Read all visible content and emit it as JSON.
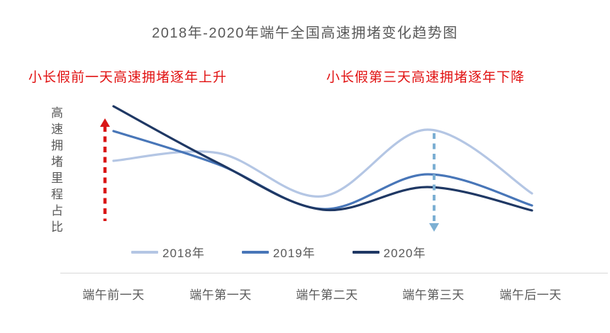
{
  "title": "2018年-2020年端午全国高速拥堵变化趋势图",
  "annotations": {
    "left": {
      "text": "小长假前一天高速拥堵逐年上升",
      "arrow": "up"
    },
    "right": {
      "text": "小长假第三天高速拥堵逐年下降",
      "arrow": "down"
    },
    "text_color": "#e11212",
    "up_arrow_color": "#d91616",
    "down_arrow_color": "#7cafd3"
  },
  "chart_data": {
    "type": "line",
    "smooth": true,
    "title": "2018年-2020年端午全国高速拥堵变化趋势图",
    "xlabel": "",
    "ylabel": "高速拥堵里程占比",
    "y_unit": "relative_congestion_index",
    "ylim": [
      0,
      100
    ],
    "grid": false,
    "legend_position": "bottom",
    "categories": [
      "端午前一天",
      "端午第一天",
      "端午第二天",
      "端午第三天",
      "端午后一天"
    ],
    "series": [
      {
        "name": "2018年",
        "color": "#b4c6e4",
        "values": [
          56.5,
          62,
          31.5,
          78.5,
          33.5
        ]
      },
      {
        "name": "2019年",
        "color": "#4876b8",
        "values": [
          77.5,
          54,
          22.5,
          47,
          25
        ]
      },
      {
        "name": "2020年",
        "color": "#1f3864",
        "values": [
          95,
          55,
          22,
          38,
          21.5
        ]
      }
    ]
  }
}
